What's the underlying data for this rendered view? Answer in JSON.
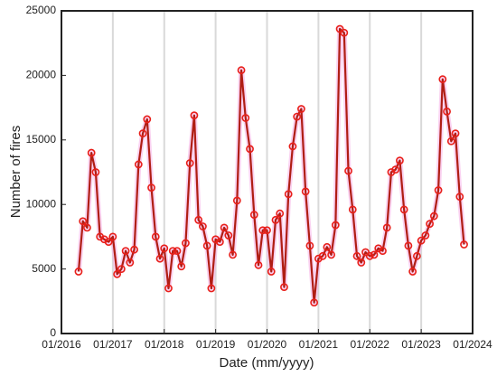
{
  "chart_data": {
    "type": "line",
    "xlabel": "Date (mm/yyyy)",
    "ylabel": "Number of fires",
    "x": [
      "05/2016",
      "06/2016",
      "07/2016",
      "08/2016",
      "09/2016",
      "10/2016",
      "11/2016",
      "12/2016",
      "01/2017",
      "02/2017",
      "03/2017",
      "04/2017",
      "05/2017",
      "06/2017",
      "07/2017",
      "08/2017",
      "09/2017",
      "10/2017",
      "11/2017",
      "12/2017",
      "01/2018",
      "02/2018",
      "03/2018",
      "04/2018",
      "05/2018",
      "06/2018",
      "07/2018",
      "08/2018",
      "09/2018",
      "10/2018",
      "11/2018",
      "12/2018",
      "01/2019",
      "02/2019",
      "03/2019",
      "04/2019",
      "05/2019",
      "06/2019",
      "07/2019",
      "08/2019",
      "09/2019",
      "10/2019",
      "11/2019",
      "12/2019",
      "01/2020",
      "02/2020",
      "03/2020",
      "04/2020",
      "05/2020",
      "06/2020",
      "07/2020",
      "08/2020",
      "09/2020",
      "10/2020",
      "11/2020",
      "12/2020",
      "01/2021",
      "02/2021",
      "03/2021",
      "04/2021",
      "05/2021",
      "06/2021",
      "07/2021",
      "08/2021",
      "09/2021",
      "10/2021",
      "11/2021",
      "12/2021",
      "01/2022",
      "02/2022",
      "03/2022",
      "04/2022",
      "05/2022",
      "06/2022",
      "07/2022",
      "08/2022",
      "09/2022",
      "10/2022",
      "11/2022",
      "12/2022",
      "01/2023",
      "02/2023",
      "03/2023",
      "04/2023",
      "05/2023",
      "06/2023",
      "07/2023",
      "08/2023",
      "09/2023",
      "10/2023",
      "11/2023"
    ],
    "series": [
      {
        "name": "Number of fires",
        "color": "#b01e14",
        "marker_color": "#e8201a",
        "halo_color": "#f7b3e6",
        "values": [
          4800,
          8700,
          8200,
          14000,
          12500,
          7500,
          7300,
          7100,
          7500,
          4600,
          5000,
          6400,
          5500,
          6500,
          13100,
          15500,
          16600,
          11300,
          7500,
          5800,
          6600,
          3500,
          6400,
          6400,
          5200,
          7000,
          13200,
          16900,
          8800,
          8300,
          6800,
          3500,
          7300,
          7100,
          8200,
          7600,
          6100,
          10300,
          20400,
          16700,
          14300,
          9200,
          5300,
          8000,
          8000,
          4800,
          8800,
          9300,
          3600,
          10800,
          14500,
          16800,
          17400,
          11000,
          6800,
          2400,
          5800,
          6000,
          6700,
          6100,
          8400,
          23600,
          23300,
          12600,
          9600,
          6000,
          5500,
          6300,
          6000,
          6100,
          6600,
          6400,
          8200,
          12500,
          12700,
          13400,
          9600,
          6800,
          4800,
          6000,
          7200,
          7600,
          8500,
          9100,
          11100,
          19700,
          17200,
          14900,
          15500,
          10600,
          6900
        ]
      }
    ],
    "xlim": [
      "01/2016",
      "01/2024"
    ],
    "xticks": [
      "01/2016",
      "01/2017",
      "01/2018",
      "01/2019",
      "01/2020",
      "01/2021",
      "01/2022",
      "01/2023",
      "01/2024"
    ],
    "ylim": [
      0,
      25000
    ],
    "yticks": [
      0,
      5000,
      10000,
      15000,
      20000,
      25000
    ],
    "grid": "x"
  }
}
